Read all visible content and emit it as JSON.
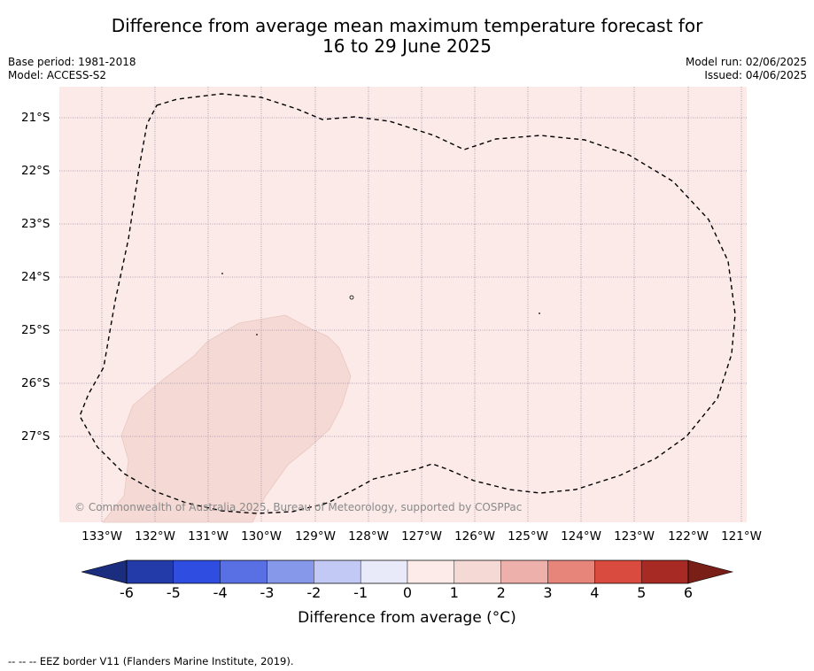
{
  "title_line1": "Difference from average mean maximum temperature forecast for",
  "title_line2": "16 to 29 June 2025",
  "meta_left": [
    "Base period: 1981-2018",
    "Model: ACCESS-S2"
  ],
  "meta_right": [
    "Model run: 02/06/2025",
    "Issued: 04/06/2025"
  ],
  "copyright": "© Commonwealth of Australia 2025, Bureau of Meteorology, supported by COSPPac",
  "map": {
    "lat_labels": [
      "21°S",
      "22°S",
      "23°S",
      "24°S",
      "25°S",
      "26°S",
      "27°S"
    ],
    "lon_labels": [
      "133°W",
      "132°W",
      "131°W",
      "130°W",
      "129°W",
      "128°W",
      "127°W",
      "126°W",
      "125°W",
      "124°W",
      "123°W",
      "122°W",
      "121°W"
    ],
    "background_color": "#fbeae8",
    "anomaly_patch_color": "#f4d9d5",
    "anomaly_patch_class": "1 to 2"
  },
  "colorbar": {
    "title": "Difference from average (°C)",
    "ticks": [
      "-6",
      "-5",
      "-4",
      "-3",
      "-2",
      "-1",
      "0",
      "1",
      "2",
      "3",
      "4",
      "5",
      "6"
    ],
    "colors": [
      "#233ba8",
      "#2f4de0",
      "#5870e3",
      "#8598ea",
      "#c2c9f4",
      "#e8eafa",
      "#fcebe8",
      "#f5d9d5",
      "#eeb0aa",
      "#e8857b",
      "#d94a3f",
      "#a82a24"
    ],
    "low_extend_color": "#1a2d7e",
    "high_extend_color": "#7a1e18"
  },
  "footer": "-- -- -- EEZ border V11 (Flanders Marine Institute, 2019)."
}
